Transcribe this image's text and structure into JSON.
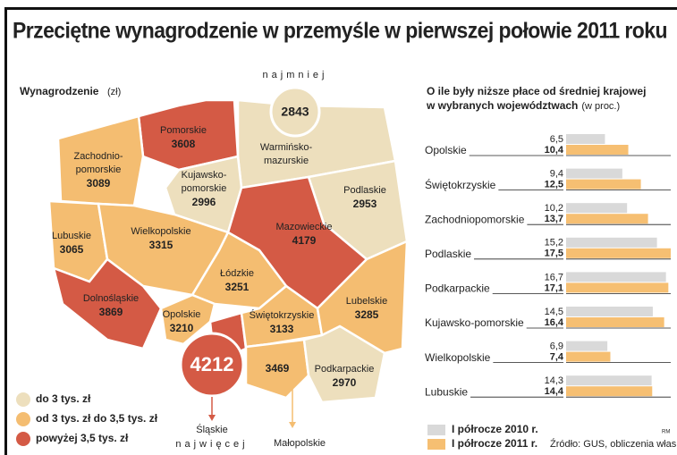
{
  "title": "Przeciętne wynagrodzenie w przemyśle w pierwszej połowie 2011 roku",
  "chart_data": [
    {
      "type": "choropleth",
      "label": "Wynagrodzenie",
      "unit": "(zł)",
      "min_label": "najmniej",
      "max_label": "najwięcej",
      "legend": [
        {
          "name": "do 3 tys. zł",
          "color": "#eddfbd"
        },
        {
          "name": "od 3 tys. zł do 3,5 tys. zł",
          "color": "#f4bd71"
        },
        {
          "name": "powyżej 3,5 tys. zł",
          "color": "#d45a45"
        }
      ],
      "regions": [
        {
          "name": [
            "Pomorskie"
          ],
          "value": 3608,
          "color": "#d45a45"
        },
        {
          "name": [
            "Zachodnio-",
            "pomorskie"
          ],
          "value": 3089,
          "color": "#f4bd71"
        },
        {
          "name": [
            "Warmińsko-",
            "mazurskie"
          ],
          "value": 2843,
          "color": "#eddfbd"
        },
        {
          "name": [
            "Podlaskie"
          ],
          "value": 2953,
          "color": "#eddfbd"
        },
        {
          "name": [
            "Kujawsko-",
            "pomorskie"
          ],
          "value": 2996,
          "color": "#eddfbd"
        },
        {
          "name": [
            "Lubuskie"
          ],
          "value": 3065,
          "color": "#f4bd71"
        },
        {
          "name": [
            "Wielkopolskie"
          ],
          "value": 3315,
          "color": "#f4bd71"
        },
        {
          "name": [
            "Mazowieckie"
          ],
          "value": 4179,
          "color": "#d45a45"
        },
        {
          "name": [
            "Łódzkie"
          ],
          "value": 3251,
          "color": "#f4bd71"
        },
        {
          "name": [
            "Dolnośląskie"
          ],
          "value": 3869,
          "color": "#d45a45"
        },
        {
          "name": [
            "Opolskie"
          ],
          "value": 3210,
          "color": "#f4bd71"
        },
        {
          "name": [
            "Śląskie"
          ],
          "value": 4212,
          "color": "#d45a45"
        },
        {
          "name": [
            "Świętokrzyskie"
          ],
          "value": 3133,
          "color": "#f4bd71"
        },
        {
          "name": [
            "Lubelskie"
          ],
          "value": 3285,
          "color": "#f4bd71"
        },
        {
          "name": [
            "Małopolskie"
          ],
          "value": 3469,
          "color": "#f4bd71"
        },
        {
          "name": [
            "Podkarpackie"
          ],
          "value": 2970,
          "color": "#eddfbd"
        }
      ]
    },
    {
      "type": "bar",
      "title_lines": [
        "O ile były niższe płace od średniej krajowej",
        "w wybranych województwach"
      ],
      "subtitle": "(w proc.)",
      "categories": [
        "Opolskie",
        "Świętokrzyskie",
        "Zachodniopomorskie",
        "Podlaskie",
        "Podkarpackie",
        "Kujawsko-pomorskie",
        "Wielkopolskie",
        "Lubuskie"
      ],
      "series": [
        {
          "name": "I półrocze 2010 r.",
          "color": "#d9d9d9",
          "values": [
            6.5,
            9.4,
            10.2,
            15.2,
            16.7,
            14.5,
            6.9,
            14.3
          ],
          "value_labels": [
            "6,5",
            "9,4",
            "10,2",
            "15,2",
            "16,7",
            "14,5",
            "6,9",
            "14,3"
          ]
        },
        {
          "name": "I półrocze 2011 r.",
          "color": "#f6bf72",
          "values": [
            10.4,
            12.5,
            13.7,
            17.5,
            17.1,
            16.4,
            7.4,
            14.4
          ],
          "value_labels": [
            "10,4",
            "12,5",
            "13,7",
            "17,5",
            "17,1",
            "16,4",
            "7,4",
            "14,4"
          ]
        }
      ],
      "source": "Źródło: GUS, obliczenia własne",
      "credit": "RM"
    }
  ]
}
